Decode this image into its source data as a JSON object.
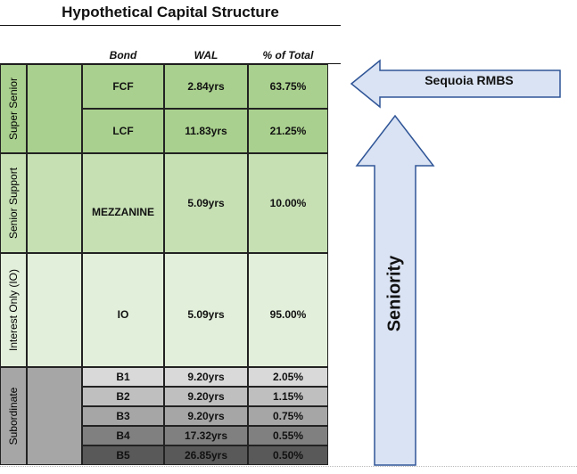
{
  "title": "Hypothetical Capital Structure",
  "headers": {
    "bond": "Bond",
    "wal": "WAL",
    "pct": "% of Total"
  },
  "groups": {
    "super_senior": "Super Senior",
    "senior_support": "Senior Support",
    "interest_only": "Interest Only (IO)",
    "subordinate": "Subordinate"
  },
  "rows": [
    {
      "bond": "FCF",
      "wal": "2.84yrs",
      "pct": "63.75%"
    },
    {
      "bond": "LCF",
      "wal": "11.83yrs",
      "pct": "21.25%"
    },
    {
      "bond": "MEZZANINE",
      "wal": "5.09yrs",
      "pct": "10.00%"
    },
    {
      "bond": "IO",
      "wal": "5.09yrs",
      "pct": "95.00%"
    },
    {
      "bond": "B1",
      "wal": "9.20yrs",
      "pct": "2.05%"
    },
    {
      "bond": "B2",
      "wal": "9.20yrs",
      "pct": "1.15%"
    },
    {
      "bond": "B3",
      "wal": "9.20yrs",
      "pct": "0.75%"
    },
    {
      "bond": "B4",
      "wal": "17.32yrs",
      "pct": "0.55%"
    },
    {
      "bond": "B5",
      "wal": "26.85yrs",
      "pct": "0.50%"
    }
  ],
  "arrows": {
    "sequoia": "Sequoia RMBS",
    "seniority": "Seniority"
  },
  "colors": {
    "super_senior": "#a9d08e",
    "senior_support": "#c6e0b4",
    "interest_only": "#e2efda",
    "subordinate_band": "#a6a6a6",
    "b1": "#d9d9d9",
    "b2": "#bfbfbf",
    "b3": "#a6a6a6",
    "b4": "#808080",
    "b5": "#595959",
    "arrow_fill": "#dae3f3",
    "arrow_stroke": "#2f5597"
  }
}
